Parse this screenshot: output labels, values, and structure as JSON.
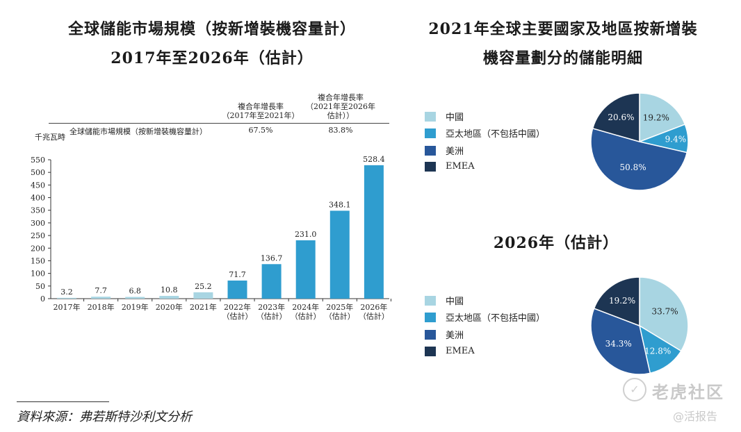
{
  "left": {
    "title_line1": "全球儲能市場規模（按新增裝機容量計）",
    "title_line2": "2017年至2026年（估計）",
    "cagr_header_1": [
      "複合年增長率",
      "（2017年至2021年）"
    ],
    "cagr_header_2": [
      "複合年增長率",
      "（2021年至2026年",
      "估計））"
    ],
    "cagr_row_label": "全球儲能市場規模（按新增裝機容量計）",
    "cagr_value_1": "67.5%",
    "cagr_value_2": "83.8%",
    "unit": "千兆瓦時"
  },
  "right": {
    "title_line1": "2021年全球主要國家及地區按新增裝",
    "title_line2": "機容量劃分的儲能明細",
    "title_2026": "2026年（估計）"
  },
  "source": "資料來源：弗若斯特沙利文分析",
  "watermark": {
    "brand": "老虎社区",
    "sub": "@活报告"
  },
  "colors": {
    "bar_light": "#a8d5e2",
    "bar_main": "#2f9dcf",
    "china": "#a8d5e2",
    "apac": "#2f9dcf",
    "americas": "#28579a",
    "emea": "#1d3553"
  },
  "chart_data": [
    {
      "type": "bar",
      "title": "全球儲能市場規模（按新增裝機容量計）2017年至2026年（估計）",
      "ylabel": "千兆瓦時",
      "ylim": [
        0,
        550
      ],
      "yticks": [
        0,
        50,
        100,
        150,
        200,
        250,
        300,
        350,
        400,
        450,
        500,
        550
      ],
      "categories": [
        [
          "2017年"
        ],
        [
          "2018年"
        ],
        [
          "2019年"
        ],
        [
          "2020年"
        ],
        [
          "2021年"
        ],
        [
          "2022年",
          "（估計）"
        ],
        [
          "2023年",
          "（估計）"
        ],
        [
          "2024年",
          "（估計）"
        ],
        [
          "2025年",
          "（估計）"
        ],
        [
          "2026年",
          "（估計）"
        ]
      ],
      "values": [
        3.2,
        7.7,
        6.8,
        10.8,
        25.2,
        71.7,
        136.7,
        231.0,
        348.1,
        528.4
      ],
      "value_labels": [
        "3.2",
        "7.7",
        "6.8",
        "10.8",
        "25.2",
        "71.7",
        "136.7",
        "231.0",
        "348.1",
        "528.4"
      ],
      "highlight_from_index": 5,
      "grid": false
    },
    {
      "type": "pie",
      "title": "2021年全球主要國家及地區按新增裝機容量劃分的儲能明細",
      "labels": [
        "中國",
        "亞太地區（不包括中國）",
        "美洲",
        "EMEA"
      ],
      "values": [
        19.2,
        9.4,
        50.8,
        20.6
      ],
      "value_labels": [
        "19.2%",
        "9.4%",
        "50.8%",
        "20.6%"
      ],
      "legend": "left"
    },
    {
      "type": "pie",
      "title": "2026年（估計）",
      "labels": [
        "中國",
        "亞太地區（不包括中國）",
        "美洲",
        "EMEA"
      ],
      "values": [
        33.7,
        12.8,
        34.3,
        19.2
      ],
      "value_labels": [
        "33.7%",
        "12.8%",
        "34.3%",
        "19.2%"
      ],
      "legend": "left"
    }
  ]
}
